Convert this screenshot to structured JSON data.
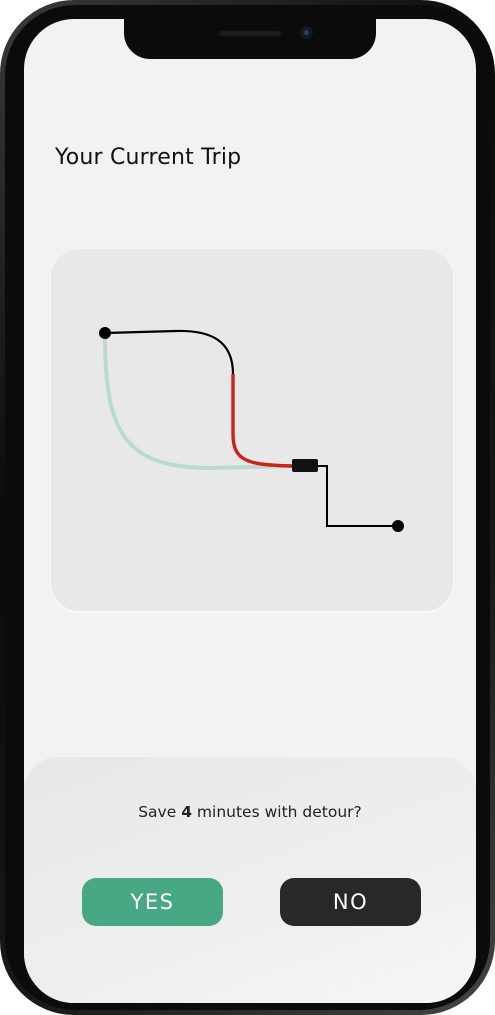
{
  "trip": {
    "title": "Your Current Trip"
  },
  "prompt": {
    "prefix": "Save ",
    "minutes": "4",
    "suffix": " minutes with detour?"
  },
  "actions": {
    "yes_label": "YES",
    "no_label": "NO"
  },
  "colors": {
    "accent_yes": "#47a883",
    "button_no": "#282828",
    "route_original": "#000000",
    "route_delay": "#cc2219",
    "route_detour": "#b8dbcd"
  },
  "map": {
    "icons": [
      "start-point-icon",
      "end-point-icon",
      "vehicle-icon"
    ]
  }
}
